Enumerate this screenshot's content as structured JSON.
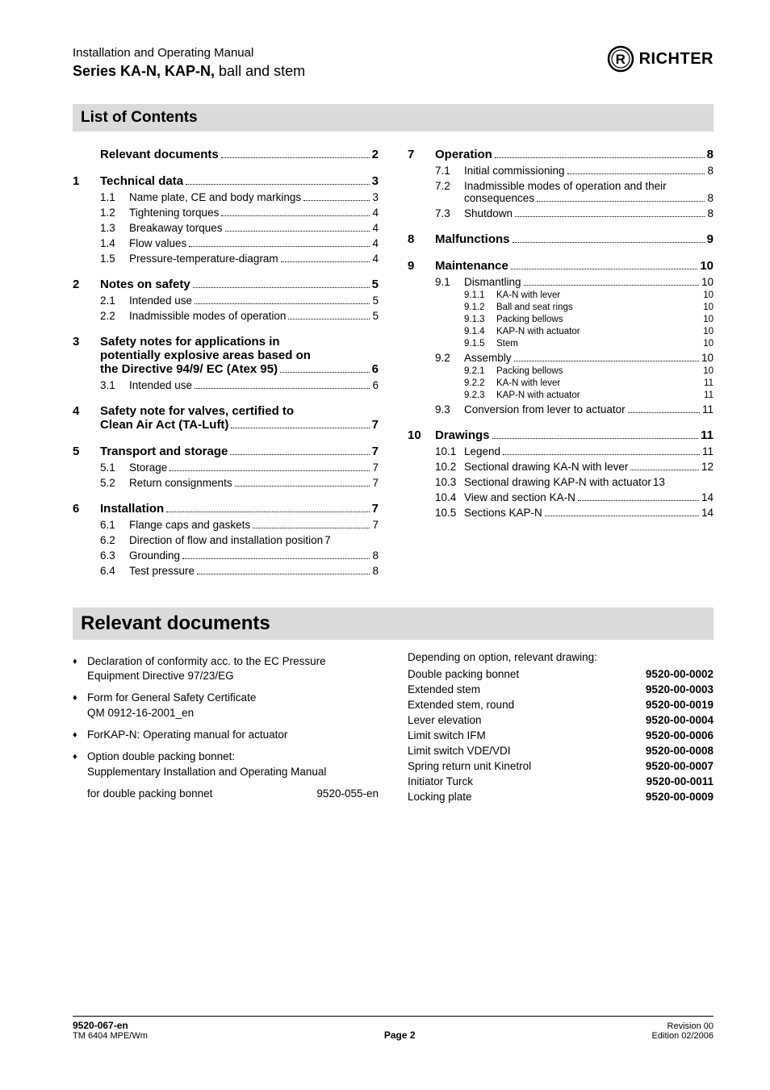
{
  "header": {
    "line1": "Installation and Operating Manual",
    "series_bold": "Series KA-N, KAP-N,",
    "series_rest": " ball and stem",
    "logo_text": "RICHTER"
  },
  "toc_title": "List of Contents",
  "reldocs_title": "Relevant documents",
  "left_toc": [
    {
      "type": "major",
      "num": "",
      "title": "Relevant documents",
      "page": "2",
      "first": true
    },
    {
      "type": "major",
      "num": "1",
      "title": "Technical data",
      "page": "3"
    },
    {
      "type": "sub",
      "num": "1.1",
      "title": "Name plate, CE and body markings",
      "page": "3"
    },
    {
      "type": "sub",
      "num": "1.2",
      "title": "Tightening torques",
      "page": "4"
    },
    {
      "type": "sub",
      "num": "1.3",
      "title": "Breakaway torques",
      "page": "4"
    },
    {
      "type": "sub",
      "num": "1.4",
      "title": "Flow values",
      "page": "4"
    },
    {
      "type": "sub",
      "num": "1.5",
      "title": "Pressure-temperature-diagram",
      "page": "4"
    },
    {
      "type": "major",
      "num": "2",
      "title": "Notes on safety",
      "page": "5"
    },
    {
      "type": "sub",
      "num": "2.1",
      "title": "Intended use",
      "page": "5"
    },
    {
      "type": "sub",
      "num": "2.2",
      "title": "Inadmissible  modes  of  operation",
      "page": "5"
    },
    {
      "type": "major_multi",
      "num": "3",
      "lines": [
        "Safety notes for applications in",
        "potentially explosive areas based on"
      ],
      "last": "the Directive 94/9/ EC (Atex 95)",
      "page": "6"
    },
    {
      "type": "sub",
      "num": "3.1",
      "title": "Intended use",
      "page": "6"
    },
    {
      "type": "major_multi",
      "num": "4",
      "lines": [
        "Safety note for valves, certified to"
      ],
      "last": "Clean Air Act (TA-Luft)",
      "page": "7"
    },
    {
      "type": "major",
      "num": "5",
      "title": "Transport and storage",
      "page": "7"
    },
    {
      "type": "sub",
      "num": "5.1",
      "title": "Storage",
      "page": "7"
    },
    {
      "type": "sub",
      "num": "5.2",
      "title": "Return consignments",
      "page": "7"
    },
    {
      "type": "major",
      "num": "6",
      "title": "Installation",
      "page": "7"
    },
    {
      "type": "sub",
      "num": "6.1",
      "title": "Flange caps and gaskets",
      "page": "7"
    },
    {
      "type": "sub",
      "num": "6.2",
      "title": "Direction of flow and installation position",
      "page": "7",
      "tight": true
    },
    {
      "type": "sub",
      "num": "6.3",
      "title": "Grounding",
      "page": "8"
    },
    {
      "type": "sub",
      "num": "6.4",
      "title": "Test pressure",
      "page": "8"
    }
  ],
  "right_toc": [
    {
      "type": "major",
      "num": "7",
      "title": "Operation",
      "page": "8",
      "first": true
    },
    {
      "type": "sub",
      "num": "7.1",
      "title": "Initial commissioning",
      "page": "8"
    },
    {
      "type": "sub_multi",
      "num": "7.2",
      "line1": "Inadmissible modes of operation and their",
      "last": "consequences",
      "page": "8"
    },
    {
      "type": "sub",
      "num": "7.3",
      "title": "Shutdown",
      "page": "8"
    },
    {
      "type": "major",
      "num": "8",
      "title": "Malfunctions",
      "page": "9"
    },
    {
      "type": "major",
      "num": "9",
      "title": "Maintenance",
      "page": "10"
    },
    {
      "type": "sub",
      "num": "9.1",
      "title": "Dismantling",
      "page": "10"
    },
    {
      "type": "subsub",
      "num": "9.1.1",
      "title": "KA-N with lever",
      "page": "10"
    },
    {
      "type": "subsub",
      "num": "9.1.2",
      "title": "Ball and seat rings",
      "page": "10"
    },
    {
      "type": "subsub",
      "num": "9.1.3",
      "title": "Packing bellows",
      "page": "10"
    },
    {
      "type": "subsub",
      "num": "9.1.4",
      "title": "KAP-N with actuator",
      "page": "10"
    },
    {
      "type": "subsub",
      "num": "9.1.5",
      "title": "Stem",
      "page": "10"
    },
    {
      "type": "sub",
      "num": "9.2",
      "title": "Assembly",
      "page": "10"
    },
    {
      "type": "subsub",
      "num": "9.2.1",
      "title": "Packing bellows",
      "page": "10"
    },
    {
      "type": "subsub",
      "num": "9.2.2",
      "title": "KA-N with lever",
      "page": "11"
    },
    {
      "type": "subsub",
      "num": "9.2.3",
      "title": "KAP-N with actuator",
      "page": "11"
    },
    {
      "type": "sub",
      "num": "9.3",
      "title": "Conversion from lever to actuator",
      "page": "11"
    },
    {
      "type": "major",
      "num": "10",
      "title": "Drawings",
      "page": "11"
    },
    {
      "type": "sub",
      "num": "10.1",
      "title": "Legend",
      "page": "11"
    },
    {
      "type": "sub",
      "num": "10.2",
      "title": "Sectional drawing KA-N with lever",
      "page": "12"
    },
    {
      "type": "sub",
      "num": "10.3",
      "title": "Sectional drawing KAP-N with actuator",
      "page": "13",
      "tight": true
    },
    {
      "type": "sub",
      "num": "10.4",
      "title": "View and section KA-N",
      "page": "14"
    },
    {
      "type": "sub",
      "num": "10.5",
      "title": "Sections KAP-N",
      "page": "14"
    }
  ],
  "reldocs_left": [
    {
      "lines": [
        "Declaration  of  conformity  acc.  to  the  EC  Pressure",
        "Equipment Directive 97/23/EG"
      ]
    },
    {
      "lines": [
        "Form for General Safety Certificate",
        "QM 0912-16-2001_en"
      ]
    },
    {
      "lines": [
        "ForKAP-N: Operating manual for actuator"
      ]
    },
    {
      "lines": [
        "Option double packing bonnet:",
        "Supplementary  Installation  and  Operating  Manual"
      ],
      "tail_left": "for double packing bonnet",
      "tail_right": "9520-055-en"
    }
  ],
  "reldocs_right_intro": "Depending on option, relevant drawing:",
  "reldocs_right": [
    {
      "name": "Double packing bonnet",
      "code": "9520-00-0002"
    },
    {
      "name": "Extended stem",
      "code": "9520-00-0003"
    },
    {
      "name": "Extended stem, round",
      "code": "9520-00-0019"
    },
    {
      "name": "Lever elevation",
      "code": "9520-00-0004"
    },
    {
      "name": "Limit switch IFM",
      "code": "9520-00-0006"
    },
    {
      "name": "Limit switch VDE/VDI",
      "code": "9520-00-0008"
    },
    {
      "name": "Spring return unit Kinetrol",
      "code": "9520-00-0007"
    },
    {
      "name": "Initiator Turck",
      "code": "9520-00-0011"
    },
    {
      "name": "Locking plate",
      "code": "9520-00-0009"
    }
  ],
  "footer": {
    "doc_bold": "9520-067-en",
    "doc_sub": "TM 6404    MPE/Wm",
    "page_label": "Page 2",
    "rev": "Revision 00",
    "edition": "Edition 02/2006"
  }
}
